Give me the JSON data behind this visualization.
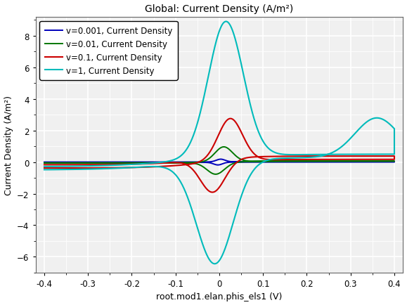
{
  "title": "Global: Current Density (A/m²)",
  "xlabel": "root.mod1.elan.phis_els1 (V)",
  "ylabel": "Current Density (A/m²)",
  "xlim": [
    -0.42,
    0.42
  ],
  "ylim": [
    -7.0,
    9.2
  ],
  "yticks": [
    -6,
    -4,
    -2,
    0,
    2,
    4,
    6,
    8
  ],
  "xticks": [
    -0.4,
    -0.3,
    -0.2,
    -0.1,
    0.0,
    0.1,
    0.2,
    0.3,
    0.4
  ],
  "legend": [
    {
      "label": "v=0.001, Current Density",
      "color": "#0000bb"
    },
    {
      "label": "v=0.01, Current Density",
      "color": "#007700"
    },
    {
      "label": "v=0.1, Current Density",
      "color": "#cc0000"
    },
    {
      "label": "v=1, Current Density",
      "color": "#00bbbb"
    }
  ],
  "bg_color": "#f0f0f0",
  "grid_color": "#ffffff",
  "title_fontsize": 10,
  "label_fontsize": 9,
  "tick_fontsize": 8.5,
  "legend_fontsize": 8.5
}
